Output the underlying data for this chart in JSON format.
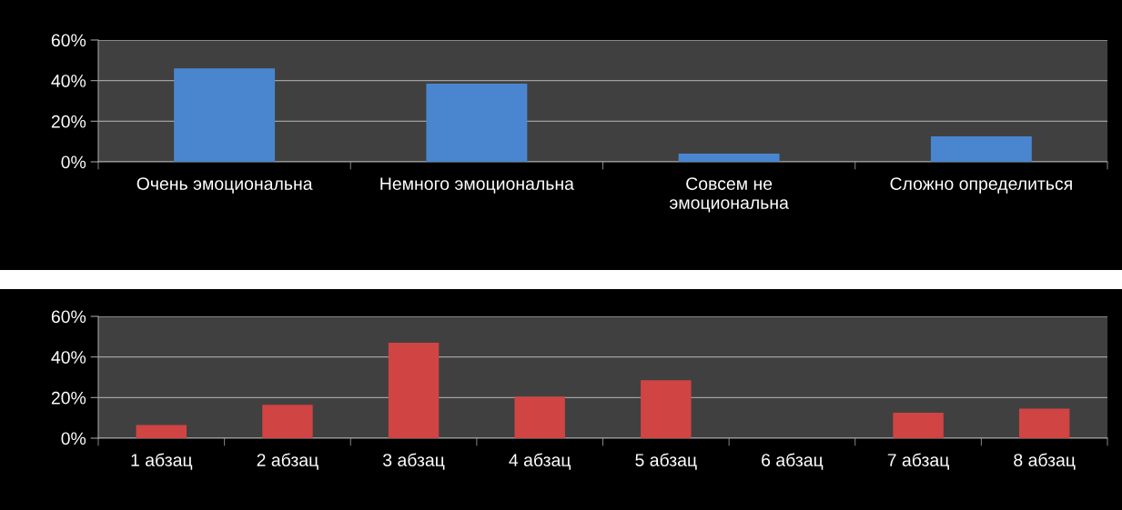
{
  "chart_data": [
    {
      "type": "bar",
      "categories": [
        "Очень эмоциональна",
        "Немного эмоциональна",
        "Совсем не\nэмоциональна",
        "Сложно определиться"
      ],
      "values": [
        46,
        38.5,
        4,
        12.5
      ],
      "color": "#4a86d0",
      "ylim": [
        0,
        60
      ],
      "yticks": [
        {
          "value": 0,
          "label": "0%"
        },
        {
          "value": 20,
          "label": "20%"
        },
        {
          "value": 40,
          "label": "40%"
        },
        {
          "value": 60,
          "label": "60%"
        }
      ],
      "grid": "y"
    },
    {
      "type": "bar",
      "categories": [
        "1 абзац",
        "2 абзац",
        "3 абзац",
        "4 абзац",
        "5 абзац",
        "6 абзац",
        "7 абзац",
        "8 абзац"
      ],
      "values": [
        6.5,
        16.5,
        47,
        20.5,
        28.5,
        0,
        12.5,
        14.5
      ],
      "color": "#d04444",
      "ylim": [
        0,
        60
      ],
      "yticks": [
        {
          "value": 0,
          "label": "0%"
        },
        {
          "value": 20,
          "label": "20%"
        },
        {
          "value": 40,
          "label": "40%"
        },
        {
          "value": 60,
          "label": "60%"
        }
      ],
      "grid": "y"
    }
  ]
}
